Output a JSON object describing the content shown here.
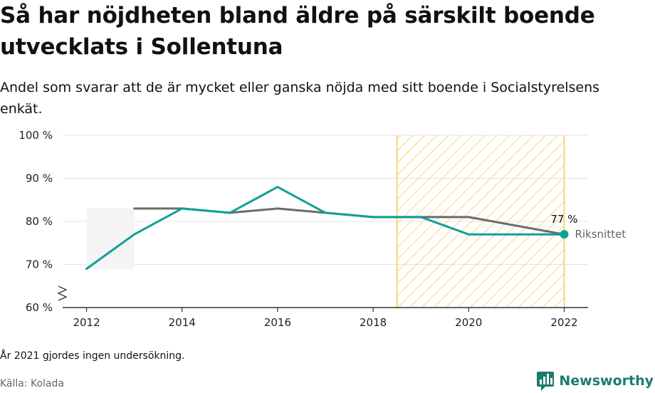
{
  "title": "Så har nöjdheten bland äldre på särskilt boende utvecklats i Sollentuna",
  "subtitle": "Andel som svarar att de är mycket eller ganska nöjda med sitt boende i Socialstyrelsens enkät.",
  "note": "År 2021 gjordes ingen undersökning.",
  "source": "Källa: Kolada",
  "brand": {
    "name": "Newsworthy",
    "icon": "bar-chart-logo-icon",
    "color": "#1d7a72"
  },
  "chart_data": {
    "type": "line",
    "x_ticks": [
      2012,
      2014,
      2016,
      2018,
      2020,
      2022
    ],
    "x_range": [
      2011.5,
      2022.5
    ],
    "y_ticks": [
      60,
      70,
      80,
      90,
      100
    ],
    "y_tick_labels": [
      "60 %",
      "70 %",
      "80 %",
      "90 %",
      "100 %"
    ],
    "y_range": [
      60,
      100
    ],
    "y_axis_break": true,
    "grid": true,
    "highlight_range": [
      2018.5,
      2022
    ],
    "highlight_color": "#f7c948",
    "end_label": "77 %",
    "series": [
      {
        "name": "",
        "color": "#10a096",
        "x": [
          2012,
          2013,
          2014,
          2015,
          2016,
          2017,
          2018,
          2019,
          2020,
          2022
        ],
        "y": [
          69,
          77,
          83,
          82,
          88,
          82,
          81,
          81,
          77,
          77
        ]
      },
      {
        "name": "Riksnittet",
        "color": "#6b6b6b",
        "x": [
          2013,
          2014,
          2015,
          2016,
          2017,
          2018,
          2019,
          2020,
          2022
        ],
        "y": [
          83,
          83,
          82,
          83,
          82,
          81,
          81,
          81,
          77
        ]
      }
    ]
  }
}
